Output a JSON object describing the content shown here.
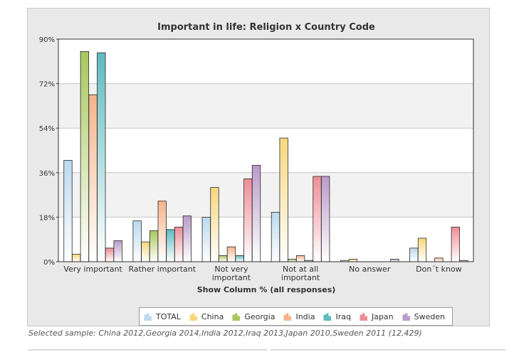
{
  "chart_data": {
    "type": "bar",
    "title": "Important in life: Religion x Country Code",
    "xlabel": "Show Column % (all responses)",
    "ylabel": "",
    "ylim": [
      0,
      90
    ],
    "yticks": [
      "0%",
      "18%",
      "36%",
      "54%",
      "72%",
      "90%"
    ],
    "grid": true,
    "legend_position": "bottom",
    "categories": [
      [
        "Very important"
      ],
      [
        "Rather important"
      ],
      [
        "Not very",
        "important"
      ],
      [
        "Not at all",
        "important"
      ],
      [
        "No answer"
      ],
      [
        "Don´t know"
      ]
    ],
    "series": [
      {
        "name": "TOTAL",
        "color": "#bcd9ee",
        "values": [
          41,
          16.5,
          18,
          20,
          0.5,
          5.5
        ]
      },
      {
        "name": "China",
        "color": "#f6d77c",
        "values": [
          3,
          8,
          30,
          50,
          1,
          9.5
        ]
      },
      {
        "name": "Georgia",
        "color": "#a8c75d",
        "values": [
          85,
          12.5,
          2.5,
          1,
          0,
          0
        ]
      },
      {
        "name": "India",
        "color": "#f5b48c",
        "values": [
          67.5,
          24.5,
          6,
          2.5,
          0,
          1.5
        ]
      },
      {
        "name": "Iraq",
        "color": "#5dbbbf",
        "values": [
          84.5,
          13,
          2.5,
          0.5,
          0,
          0
        ]
      },
      {
        "name": "Japan",
        "color": "#ee8d96",
        "values": [
          5.5,
          14,
          33.5,
          34.5,
          0,
          14
        ]
      },
      {
        "name": "Sweden",
        "color": "#b99bc9",
        "values": [
          8.5,
          18.5,
          39,
          34.5,
          1,
          0.5
        ]
      }
    ]
  },
  "footer": {
    "sample_note": "Selected sample: China 2012,Georgia 2014,India 2012,Iraq 2013,Japan 2010,Sweden 2011 (12,429)"
  },
  "legend_icon": "bar-chart-icon"
}
